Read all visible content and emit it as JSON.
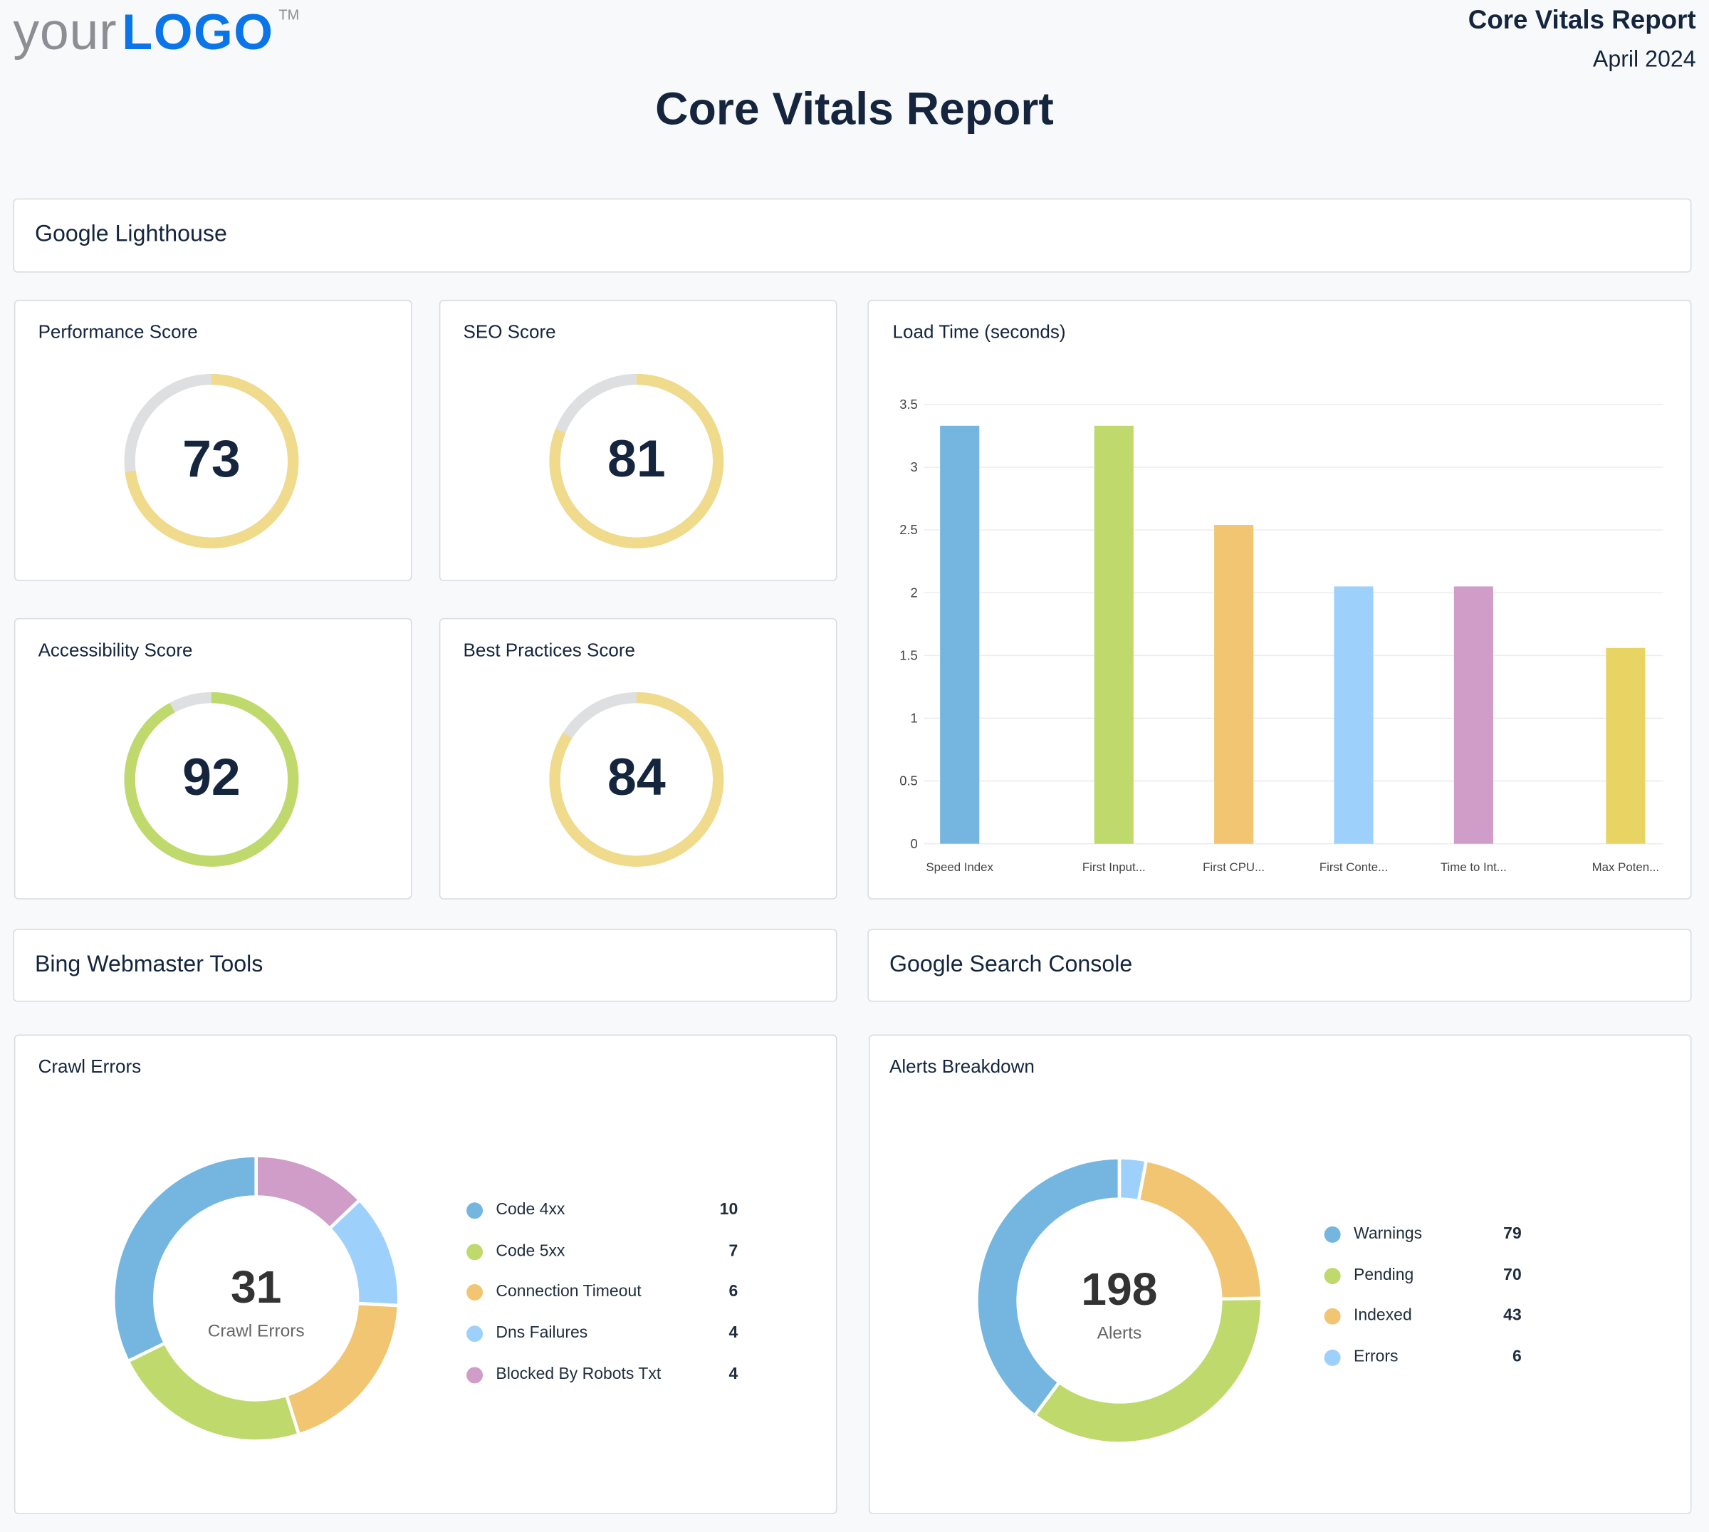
{
  "logo": {
    "text_light": "your",
    "text_bold": "LOGO",
    "tm": "TM"
  },
  "header": {
    "report_name": "Core Vitals Report",
    "date": "April 2024",
    "title": "Core Vitals Report"
  },
  "sections": {
    "lighthouse": "Google Lighthouse",
    "bing": "Bing Webmaster Tools",
    "gsc": "Google Search Console"
  },
  "scores": [
    {
      "title": "Performance Score",
      "value": "73",
      "percent": 73,
      "color": "#f0da8c"
    },
    {
      "title": "SEO Score",
      "value": "81",
      "percent": 81,
      "color": "#f0da8c"
    },
    {
      "title": "Accessibility Score",
      "value": "92",
      "percent": 92,
      "color": "#bfd96c"
    },
    {
      "title": "Best Practices Score",
      "value": "84",
      "percent": 84,
      "color": "#f0da8c"
    }
  ],
  "chart_data": [
    {
      "type": "bar",
      "title": "Load Time (seconds)",
      "categories": [
        "Speed Index",
        "First Input...",
        "First CPU...",
        "First Conte...",
        "Time to Int...",
        "Max Poten..."
      ],
      "values": [
        3.33,
        3.33,
        2.54,
        2.05,
        2.05,
        1.56
      ],
      "colors": [
        "#74b6e0",
        "#bfd96c",
        "#f1c571",
        "#9dd1fb",
        "#d09cc8",
        "#e8d462"
      ],
      "ylim": [
        0,
        3.5
      ],
      "yticks": [
        "0",
        "0.5",
        "1",
        "1.5",
        "2",
        "2.5",
        "3",
        "3.5"
      ],
      "grid": true
    },
    {
      "type": "pie",
      "title": "Crawl Errors",
      "center_value": "31",
      "center_label": "Crawl Errors",
      "series": [
        {
          "name": "Code 4xx",
          "value": 10,
          "color": "#74b6e0"
        },
        {
          "name": "Code 5xx",
          "value": 7,
          "color": "#bfd96c"
        },
        {
          "name": "Connection Timeout",
          "value": 6,
          "color": "#f1c571"
        },
        {
          "name": "Dns Failures",
          "value": 4,
          "color": "#9dd1fb"
        },
        {
          "name": "Blocked By Robots Txt",
          "value": 4,
          "color": "#d09cc8"
        }
      ],
      "legend": "right"
    },
    {
      "type": "pie",
      "title": "Alerts Breakdown",
      "center_value": "198",
      "center_label": "Alerts",
      "series": [
        {
          "name": "Warnings",
          "value": 79,
          "color": "#74b6e0"
        },
        {
          "name": "Pending",
          "value": 70,
          "color": "#bfd96c"
        },
        {
          "name": "Indexed",
          "value": 43,
          "color": "#f1c571"
        },
        {
          "name": "Errors",
          "value": 6,
          "color": "#9dd1fb"
        }
      ],
      "legend": "right"
    }
  ]
}
